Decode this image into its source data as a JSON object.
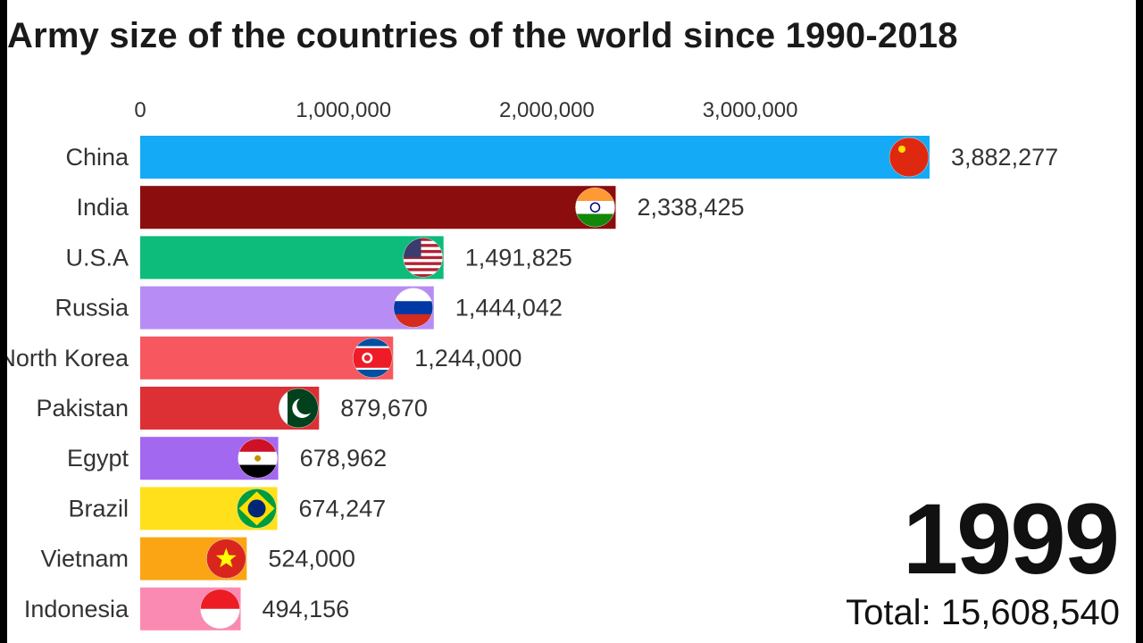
{
  "chart_data": {
    "type": "bar",
    "orientation": "horizontal",
    "title": "Army size of the countries of the world since 1990-2018",
    "xlim": [
      0,
      3882277
    ],
    "x_ticks": [
      "0",
      "1,000,000",
      "2,000,000",
      "3,000,000"
    ],
    "x_tick_values": [
      0,
      1000000,
      2000000,
      3000000
    ],
    "categories": [
      "China",
      "India",
      "U.S.A",
      "Russia",
      "North Korea",
      "Pakistan",
      "Egypt",
      "Brazil",
      "Vietnam",
      "Indonesia"
    ],
    "values": [
      3882277,
      2338425,
      1491825,
      1444042,
      1244000,
      879670,
      678962,
      674247,
      524000,
      494156
    ],
    "value_labels": [
      "3,882,277",
      "2,338,425",
      "1,491,825",
      "1,444,042",
      "1,244,000",
      "879,670",
      "678,962",
      "674,247",
      "524,000",
      "494,156"
    ],
    "colors": [
      "#14aaf5",
      "#8b0d0d",
      "#0dbb7a",
      "#b88cf5",
      "#f7585f",
      "#dc3035",
      "#a368f0",
      "#ffe01a",
      "#fba514",
      "#fb8ab2"
    ],
    "flags": [
      "china-flag-icon",
      "india-flag-icon",
      "usa-flag-icon",
      "russia-flag-icon",
      "north-korea-flag-icon",
      "pakistan-flag-icon",
      "egypt-flag-icon",
      "brazil-flag-icon",
      "vietnam-flag-icon",
      "indonesia-flag-icon"
    ],
    "grid": false,
    "year": "1999",
    "total_label": "Total: 15,608,540"
  }
}
